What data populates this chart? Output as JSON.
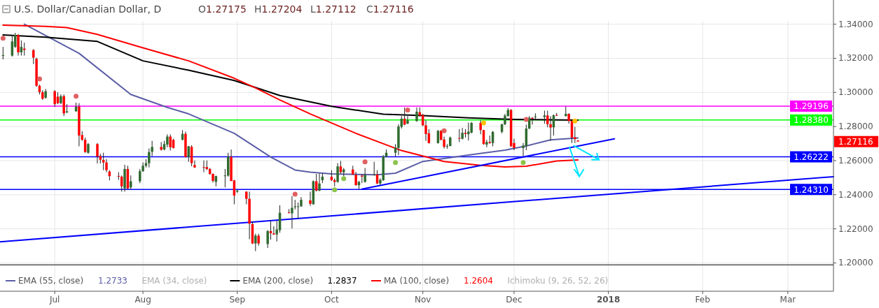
{
  "chart_data": {
    "type": "candlestick",
    "title": "U.S. Dollar/Canadian Dollar, D",
    "annotations": [
      "O1.27175",
      "H1.27204",
      "L1.27112",
      "C1.27116",
      "EMA (34, close)",
      "Ichimoku (9, 26, 52, 26)",
      "1.2733",
      "1.2837",
      "1.2604",
      "1.27116"
    ],
    "x": [
      "2017-06-16",
      "2017-06-19",
      "2017-06-20",
      "2017-06-21",
      "2017-06-22",
      "2017-06-23",
      "2017-06-26",
      "2017-06-27",
      "2017-06-28",
      "2017-06-29",
      "2017-06-30",
      "2017-07-03",
      "2017-07-04",
      "2017-07-05",
      "2017-07-06",
      "2017-07-07",
      "2017-07-10",
      "2017-07-11",
      "2017-07-12",
      "2017-07-13",
      "2017-07-14",
      "2017-07-17",
      "2017-07-18",
      "2017-07-19",
      "2017-07-20",
      "2017-07-21",
      "2017-07-24",
      "2017-07-25",
      "2017-07-26",
      "2017-07-27",
      "2017-07-28",
      "2017-07-31",
      "2017-08-01",
      "2017-08-02",
      "2017-08-03",
      "2017-08-04",
      "2017-08-07",
      "2017-08-08",
      "2017-08-09",
      "2017-08-10",
      "2017-08-11",
      "2017-08-14",
      "2017-08-15",
      "2017-08-16",
      "2017-08-17",
      "2017-08-18",
      "2017-08-21",
      "2017-08-22",
      "2017-08-23",
      "2017-08-24",
      "2017-08-25",
      "2017-08-28",
      "2017-08-29",
      "2017-08-30",
      "2017-08-31",
      "2017-09-01",
      "2017-09-04",
      "2017-09-05",
      "2017-09-06",
      "2017-09-07",
      "2017-09-08",
      "2017-09-11",
      "2017-09-12",
      "2017-09-13",
      "2017-09-14",
      "2017-09-15",
      "2017-09-18",
      "2017-09-19",
      "2017-09-20",
      "2017-09-21",
      "2017-09-22",
      "2017-09-25",
      "2017-09-26",
      "2017-09-27",
      "2017-09-28",
      "2017-09-29",
      "2017-10-02",
      "2017-10-03",
      "2017-10-04",
      "2017-10-05",
      "2017-10-06",
      "2017-10-09",
      "2017-10-10",
      "2017-10-11",
      "2017-10-12",
      "2017-10-13",
      "2017-10-16",
      "2017-10-17",
      "2017-10-18",
      "2017-10-19",
      "2017-10-20",
      "2017-10-23",
      "2017-10-24",
      "2017-10-25",
      "2017-10-26",
      "2017-10-27",
      "2017-10-30",
      "2017-10-31",
      "2017-11-01",
      "2017-11-02",
      "2017-11-03",
      "2017-11-06",
      "2017-11-07",
      "2017-11-08",
      "2017-11-09",
      "2017-11-10",
      "2017-11-13",
      "2017-11-14",
      "2017-11-15",
      "2017-11-16",
      "2017-11-17",
      "2017-11-20",
      "2017-11-21",
      "2017-11-22",
      "2017-11-23",
      "2017-11-24",
      "2017-11-27",
      "2017-11-28",
      "2017-11-29",
      "2017-11-30",
      "2017-12-01",
      "2017-12-04",
      "2017-12-05",
      "2017-12-06",
      "2017-12-07",
      "2017-12-08",
      "2017-12-11",
      "2017-12-12",
      "2017-12-13",
      "2017-12-14",
      "2017-12-15",
      "2017-12-18",
      "2017-12-19",
      "2017-12-20",
      "2017-12-21",
      "2017-12-22"
    ],
    "ohlc": [
      [
        1.3214,
        1.3267,
        1.3193,
        1.3219
      ],
      [
        1.3216,
        1.333,
        1.321,
        1.3299
      ],
      [
        1.3267,
        1.3349,
        1.3261,
        1.3337
      ],
      [
        1.3337,
        1.3343,
        1.3216,
        1.3235
      ],
      [
        1.3235,
        1.3305,
        1.3216,
        1.3267
      ],
      [
        1.3257,
        1.3292,
        1.3216,
        1.3249
      ],
      [
        1.3248,
        1.3254,
        1.3166,
        1.3204
      ],
      [
        1.3197,
        1.3204,
        1.3032,
        1.3039
      ],
      [
        1.3039,
        1.3045,
        1.2988,
        1.3001
      ],
      [
        1.3001,
        1.3013,
        1.2956,
        1.2963
      ],
      [
        1.2969,
        1.302,
        1.2963,
        1.3007
      ],
      [
        1.3007,
        1.3013,
        1.2915,
        1.2931
      ],
      [
        1.2975,
        1.3001,
        1.2931,
        1.2937
      ],
      [
        1.2937,
        1.2988,
        1.2931,
        1.2978
      ],
      [
        1.2978,
        1.2988,
        1.2861,
        1.2877
      ],
      [
        1.2882,
        1.2931,
        1.288,
        1.2889
      ],
      [
        1.2889,
        1.294,
        1.2887,
        1.2917
      ],
      [
        1.2917,
        1.2937,
        1.2684,
        1.2747
      ],
      [
        1.275,
        1.2773,
        1.2716,
        1.2722
      ],
      [
        1.2722,
        1.2735,
        1.2646,
        1.265
      ],
      [
        1.2646,
        1.2703,
        1.264,
        1.2697
      ],
      [
        1.2697,
        1.2703,
        1.2583,
        1.2624
      ],
      [
        1.2627,
        1.264,
        1.2583,
        1.2605
      ],
      [
        1.2604,
        1.2646,
        1.2544,
        1.2589
      ],
      [
        1.2589,
        1.2608,
        1.2532,
        1.2544
      ],
      [
        1.2536,
        1.2544,
        1.2484,
        1.2509
      ],
      [
        1.251,
        1.2532,
        1.2487,
        1.2506
      ],
      [
        1.2506,
        1.2513,
        1.2418,
        1.2449
      ],
      [
        1.2437,
        1.2576,
        1.2418,
        1.2551
      ],
      [
        1.2551,
        1.257,
        1.243,
        1.2437
      ],
      [
        1.2443,
        1.2513,
        1.2433,
        1.2479
      ],
      [
        1.2479,
        1.2551,
        1.2468,
        1.2538
      ],
      [
        1.2538,
        1.2589,
        1.2534,
        1.257
      ],
      [
        1.257,
        1.2608,
        1.256,
        1.2585
      ],
      [
        1.2585,
        1.2671,
        1.256,
        1.265
      ],
      [
        1.2652,
        1.2716,
        1.2627,
        1.268
      ],
      [
        1.268,
        1.2709,
        1.2659,
        1.2664
      ],
      [
        1.2665,
        1.2716,
        1.2661,
        1.2697
      ],
      [
        1.2694,
        1.2754,
        1.2678,
        1.2741
      ],
      [
        1.2741,
        1.2754,
        1.2659,
        1.2678
      ],
      [
        1.2722,
        1.2728,
        1.2671,
        1.2674
      ],
      [
        1.2722,
        1.2779,
        1.2719,
        1.2757
      ],
      [
        1.2757,
        1.277,
        1.2618,
        1.2621
      ],
      [
        1.2621,
        1.2686,
        1.2593,
        1.2684
      ],
      [
        1.2681,
        1.269,
        1.2567,
        1.2585
      ],
      [
        1.2574,
        1.2601,
        1.2557,
        1.256
      ],
      [
        1.2562,
        1.2601,
        1.2532,
        1.2558
      ],
      [
        1.2562,
        1.2601,
        1.2544,
        1.2551
      ],
      [
        1.2551,
        1.2557,
        1.2517,
        1.2522
      ],
      [
        1.2522,
        1.2525,
        1.2471,
        1.2481
      ],
      [
        1.2475,
        1.2512,
        1.2449,
        1.2509
      ],
      [
        1.2509,
        1.2551,
        1.2443,
        1.2513
      ],
      [
        1.2512,
        1.2646,
        1.2506,
        1.2623
      ],
      [
        1.2623,
        1.2665,
        1.2479,
        1.2481
      ],
      [
        1.2484,
        1.2487,
        1.2344,
        1.2395
      ],
      [
        1.2418,
        1.243,
        1.2411,
        1.2424
      ],
      [
        1.2418,
        1.242,
        1.2344,
        1.2376
      ],
      [
        1.2376,
        1.2418,
        1.2139,
        1.223
      ],
      [
        1.2228,
        1.2243,
        1.2111,
        1.2114
      ],
      [
        1.2114,
        1.2171,
        1.2069,
        1.216
      ],
      [
        1.216,
        1.2171,
        1.2101,
        1.2114
      ],
      [
        1.2111,
        1.2192,
        1.2088,
        1.2187
      ],
      [
        1.2187,
        1.2247,
        1.2136,
        1.2174
      ],
      [
        1.2173,
        1.2215,
        1.2164,
        1.2167
      ],
      [
        1.2167,
        1.2247,
        1.2126,
        1.2196
      ],
      [
        1.2192,
        1.2338,
        1.2177,
        1.2294
      ],
      [
        1.2296,
        1.2316,
        1.2291,
        1.2292
      ],
      [
        1.2291,
        1.2392,
        1.2202,
        1.2323
      ],
      [
        1.2327,
        1.237,
        1.2314,
        1.2332
      ],
      [
        1.2328,
        1.2354,
        1.2259,
        1.2332
      ],
      [
        1.2332,
        1.2386,
        1.2329,
        1.237
      ],
      [
        1.2367,
        1.2418,
        1.2335,
        1.2347
      ],
      [
        1.2344,
        1.2484,
        1.2342,
        1.2479
      ],
      [
        1.2479,
        1.2522,
        1.2418,
        1.2424
      ],
      [
        1.2424,
        1.2525,
        1.242,
        1.2466
      ],
      [
        1.2485,
        1.2525,
        1.2468,
        1.2506
      ],
      [
        1.2506,
        1.2544,
        1.2481,
        1.2485
      ],
      [
        1.2485,
        1.2496,
        1.2449,
        1.2475
      ],
      [
        1.2475,
        1.2585,
        1.2471,
        1.2566
      ],
      [
        1.2566,
        1.2598,
        1.2525,
        1.2532
      ],
      [
        1.2532,
        1.2557,
        1.2509,
        1.2548
      ],
      [
        1.2548,
        1.257,
        1.2517,
        1.2519
      ],
      [
        1.2517,
        1.2534,
        1.2453,
        1.2456
      ],
      [
        1.2456,
        1.2481,
        1.2433,
        1.2475
      ],
      [
        1.2512,
        1.2519,
        1.2468,
        1.2506
      ],
      [
        1.2475,
        1.2557,
        1.2471,
        1.2517
      ],
      [
        1.2517,
        1.2593,
        1.2512,
        1.2519
      ],
      [
        1.2519,
        1.2544,
        1.2462,
        1.2466
      ],
      [
        1.2466,
        1.2496,
        1.2456,
        1.2487
      ],
      [
        1.2485,
        1.2633,
        1.2481,
        1.2624
      ],
      [
        1.2623,
        1.2665,
        1.262,
        1.2646
      ],
      [
        1.2646,
        1.2697,
        1.2623,
        1.2676
      ],
      [
        1.2674,
        1.2813,
        1.2633,
        1.28
      ],
      [
        1.2798,
        1.2861,
        1.2788,
        1.2846
      ],
      [
        1.2846,
        1.2912,
        1.2808,
        1.2811
      ],
      [
        1.2817,
        1.2861,
        1.2814,
        1.2836
      ],
      [
        1.2832,
        1.2912,
        1.2828,
        1.2887
      ],
      [
        1.2884,
        1.2912,
        1.2858,
        1.2864
      ],
      [
        1.2868,
        1.2874,
        1.2802,
        1.2807
      ],
      [
        1.2807,
        1.2836,
        1.2716,
        1.2756
      ],
      [
        1.276,
        1.2785,
        1.27,
        1.2703
      ],
      [
        1.2703,
        1.2779,
        1.27,
        1.2775
      ],
      [
        1.2775,
        1.2779,
        1.2718,
        1.2722
      ],
      [
        1.2724,
        1.2741,
        1.2671,
        1.2681
      ],
      [
        1.2683,
        1.2697,
        1.2669,
        1.2686
      ],
      [
        1.2686,
        1.2741,
        1.2684,
        1.2735
      ],
      [
        1.2733,
        1.2785,
        1.2709,
        1.273
      ],
      [
        1.2728,
        1.2792,
        1.2724,
        1.2763
      ],
      [
        1.2763,
        1.2785,
        1.2735,
        1.2756
      ],
      [
        1.2755,
        1.2823,
        1.2718,
        1.277
      ],
      [
        1.2764,
        1.2826,
        1.276,
        1.2821
      ],
      [
        1.2821,
        1.2836,
        1.2754,
        1.2779
      ],
      [
        1.2779,
        1.2781,
        1.2693,
        1.2697
      ],
      [
        1.2694,
        1.2722,
        1.2678,
        1.2709
      ],
      [
        1.2709,
        1.2747,
        1.2699,
        1.2703
      ],
      [
        1.2703,
        1.2773,
        1.2684,
        1.2769
      ],
      [
        1.2769,
        1.2816,
        1.276,
        1.2813
      ],
      [
        1.2813,
        1.2874,
        1.2808,
        1.2864
      ],
      [
        1.2861,
        1.2908,
        1.2859,
        1.2897
      ],
      [
        1.2897,
        1.2902,
        1.2681,
        1.2684
      ],
      [
        1.2703,
        1.2728,
        1.2661,
        1.2674
      ],
      [
        1.2674,
        1.2703,
        1.2627,
        1.2688
      ],
      [
        1.2686,
        1.2811,
        1.2661,
        1.2788
      ],
      [
        1.2788,
        1.2861,
        1.2785,
        1.2851
      ],
      [
        1.2851,
        1.2855,
        1.2811,
        1.2846
      ],
      [
        1.2854,
        1.2877,
        1.2842,
        1.2858
      ],
      [
        1.2855,
        1.2893,
        1.2817,
        1.2865
      ],
      [
        1.2865,
        1.2893,
        1.2795,
        1.2813
      ],
      [
        1.2813,
        1.2861,
        1.2716,
        1.2794
      ],
      [
        1.2795,
        1.287,
        1.2747,
        1.2866
      ],
      [
        1.2868,
        1.288,
        1.2861,
        1.2864
      ],
      [
        1.2861,
        1.2918,
        1.2859,
        1.2874
      ],
      [
        1.2874,
        1.2878,
        1.2817,
        1.2832
      ],
      [
        1.2832,
        1.2842,
        1.2703,
        1.2735
      ],
      [
        1.2737,
        1.2798,
        1.2703,
        1.2726
      ],
      [
        1.27175,
        1.27204,
        1.27112,
        1.27116
      ]
    ],
    "series": [
      {
        "type": "line",
        "name": "EMA (55, close)",
        "color": "#5b5ea6",
        "x": [
          "2017-06-23",
          "2017-07-11",
          "2017-07-28",
          "2017-08-09",
          "2017-08-16",
          "2017-08-31",
          "2017-09-12",
          "2017-09-20",
          "2017-09-25",
          "2017-10-02",
          "2017-10-17",
          "2017-10-23",
          "2017-11-01",
          "2017-11-16",
          "2017-11-28",
          "2017-12-05",
          "2017-12-13",
          "2017-12-22"
        ],
        "values": [
          1.34,
          1.3229,
          1.2988,
          1.2912,
          1.2874,
          1.276,
          1.2621,
          1.2545,
          1.2532,
          1.2522,
          1.2517,
          1.2526,
          1.2595,
          1.2633,
          1.2661,
          1.2686,
          1.2722,
          1.2733
        ]
      },
      {
        "type": "line",
        "name": "EMA (200, close)",
        "color": "#000000",
        "x": [
          "2017-06-16",
          "2017-06-30",
          "2017-07-17",
          "2017-08-01",
          "2017-08-16",
          "2017-08-31",
          "2017-09-15",
          "2017-10-02",
          "2017-10-19",
          "2017-11-01",
          "2017-11-16",
          "2017-12-01",
          "2017-12-22"
        ],
        "values": [
          1.3337,
          1.3324,
          1.3299,
          1.3185,
          1.313,
          1.307,
          1.2982,
          1.2918,
          1.2872,
          1.2864,
          1.2851,
          1.2842,
          1.2837
        ]
      },
      {
        "type": "line",
        "name": "MA (100, close)",
        "color": "#ff0000",
        "x": [
          "2017-06-16",
          "2017-06-30",
          "2017-07-07",
          "2017-07-17",
          "2017-08-01",
          "2017-08-16",
          "2017-08-31",
          "2017-09-07",
          "2017-09-15",
          "2017-09-25",
          "2017-10-10",
          "2017-10-25",
          "2017-11-08",
          "2017-11-20",
          "2017-11-28",
          "2017-12-05",
          "2017-12-15",
          "2017-12-22"
        ],
        "values": [
          1.3394,
          1.3387,
          1.338,
          1.334,
          1.3261,
          1.3185,
          1.3083,
          1.3026,
          1.2956,
          1.2874,
          1.276,
          1.2659,
          1.2595,
          1.2572,
          1.2563,
          1.2567,
          1.2598,
          1.2604
        ]
      },
      {
        "type": "line",
        "color": "#0000ff",
        "x": [
          "2017-06-15",
          "2018-03-16"
        ],
        "values": [
          1.2124,
          1.2506
        ]
      },
      {
        "type": "line",
        "color": "#0000ff",
        "x": [
          "2017-10-12",
          "2018-01-03"
        ],
        "values": [
          1.2433,
          1.2728
        ]
      },
      {
        "type": "scatter",
        "x": [
          "2017-06-16",
          "2017-06-28",
          "2017-07-10",
          "2017-09-20",
          "2017-10-03",
          "2017-10-06",
          "2017-10-13",
          "2017-10-23",
          "2017-10-27",
          "2017-11-08",
          "2017-11-21",
          "2017-12-04",
          "2017-12-05",
          "2017-12-21"
        ],
        "values": [
          1.3318,
          1.3079,
          1.2978,
          1.2403,
          1.2429,
          1.2494,
          1.2593,
          1.2589,
          1.2897,
          1.2775,
          1.2821,
          1.2589,
          1.2842,
          1.2832
        ],
        "colors": [
          "#e06060",
          "#e06060",
          "#e06060",
          "#e06060",
          "#8bc34a",
          "#8bc34a",
          "#e06060",
          "#8bc34a",
          "#e06060",
          "#e06060",
          "#ffc107",
          "#8bc34a",
          "#e06060",
          "#ffc107"
        ]
      }
    ],
    "ref_lines": [
      {
        "axis": "y",
        "value": 1.29196,
        "label": "1.29196",
        "color": "#ff00ff"
      },
      {
        "axis": "y",
        "value": 1.2838,
        "label": "1.28380",
        "color": "#00ff00"
      },
      {
        "axis": "y",
        "value": 1.26222,
        "label": "1.26222",
        "color": "#0000ff"
      },
      {
        "axis": "y",
        "value": 1.2431,
        "label": "1.24310",
        "color": "#0000ff"
      },
      {
        "axis": "y",
        "value": 1.1989,
        "color": "#555555"
      }
    ],
    "xlim": [
      "2017-06-15",
      "2018-03-16"
    ],
    "xticks": [
      {
        "value": "2017-07-03",
        "label": "Jul"
      },
      {
        "value": "2017-08-01",
        "label": "Aug"
      },
      {
        "value": "2017-09-01",
        "label": "Sep"
      },
      {
        "value": "2017-10-02",
        "label": "Oct"
      },
      {
        "value": "2017-11-01",
        "label": "Nov"
      },
      {
        "value": "2017-12-01",
        "label": "Dec"
      },
      {
        "value": "2018-01-01",
        "label": "2018"
      },
      {
        "value": "2018-02-01",
        "label": "Feb"
      },
      {
        "value": "2018-03-01",
        "label": "Mar"
      }
    ],
    "ylim": [
      1.1834,
      1.3419
    ],
    "yticks": [
      {
        "value": 1.2,
        "label": "1.20000"
      },
      {
        "value": 1.22,
        "label": "1.22000"
      },
      {
        "value": 1.24,
        "label": "1.24000"
      },
      {
        "value": 1.26,
        "label": "1.26000"
      },
      {
        "value": 1.28,
        "label": "1.28000"
      },
      {
        "value": 1.3,
        "label": "1.30000"
      },
      {
        "value": 1.32,
        "label": "1.32000"
      },
      {
        "value": 1.34,
        "label": "1.34000"
      }
    ],
    "grid": true,
    "legend": "bottom left"
  }
}
